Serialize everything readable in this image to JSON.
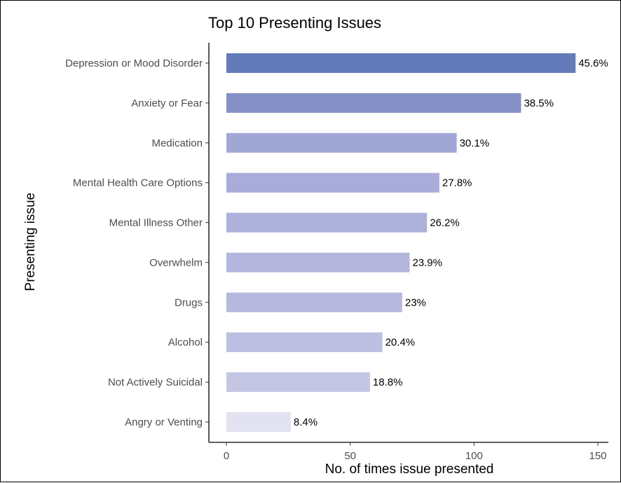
{
  "chart_data": {
    "type": "bar",
    "orientation": "horizontal",
    "title": "Top 10 Presenting Issues",
    "xlabel": "No. of times issue presented",
    "ylabel": "Presenting issue",
    "xlim": [
      0,
      155
    ],
    "xticks": [
      0,
      50,
      100,
      150
    ],
    "grid": false,
    "legend": "none",
    "categories": [
      "Depression or Mood Disorder",
      "Anxiety or Fear",
      "Medication",
      "Mental Health Care Options",
      "Mental Illness  Other",
      "Overwhelm",
      "Drugs",
      "Alcohol",
      "Not Actively Suicidal",
      "Angry or Venting"
    ],
    "values": [
      141,
      119,
      93,
      86,
      81,
      74,
      71,
      63,
      58,
      26
    ],
    "labels": [
      "45.6%",
      "38.5%",
      "30.1%",
      "27.8%",
      "26.2%",
      "23.9%",
      "23%",
      "20.4%",
      "18.8%",
      "8.4%"
    ],
    "colors": [
      "#637bb9",
      "#8590c6",
      "#a1a7d5",
      "#a9acd8",
      "#aeb1da",
      "#b4b6dd",
      "#b7b8de",
      "#bdbfe2",
      "#c4c6e4",
      "#e2e2f1"
    ]
  }
}
